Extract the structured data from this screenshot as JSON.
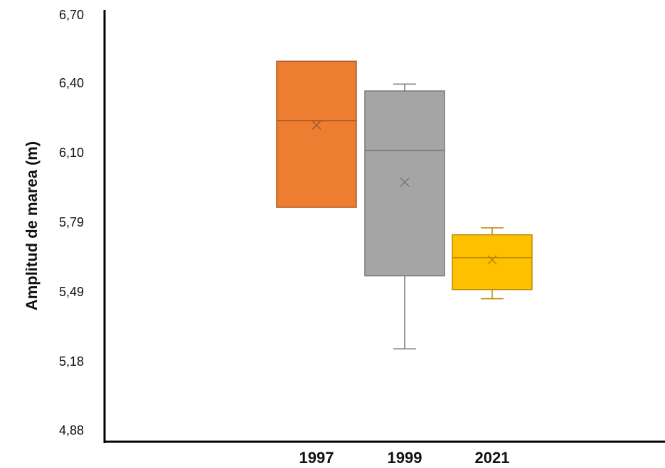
{
  "chart_data": {
    "type": "box",
    "title": "",
    "xlabel": "",
    "ylabel": "Amplitud de marea (m)",
    "ylim": [
      4.88,
      6.7
    ],
    "yticks": [
      "6,70",
      "6,40",
      "6,10",
      "5,79",
      "5,49",
      "5,18",
      "4,88"
    ],
    "yticks_values": [
      6.7,
      6.4,
      6.1,
      5.79,
      5.49,
      5.18,
      4.88
    ],
    "grid": false,
    "legend": "none",
    "categories": [
      "1997",
      "1999",
      "2021"
    ],
    "series": [
      {
        "category": "1997",
        "color": "#ED7D31",
        "whisker_low": 5.86,
        "q1": 5.86,
        "median": 6.24,
        "q3": 6.5,
        "whisker_high": 6.5,
        "mean": 6.22
      },
      {
        "category": "1999",
        "color": "#A5A5A5",
        "whisker_low": 5.24,
        "q1": 5.56,
        "median": 6.11,
        "q3": 6.37,
        "whisker_high": 6.4,
        "mean": 5.97
      },
      {
        "category": "2021",
        "color": "#FFC000",
        "whisker_low": 5.46,
        "q1": 5.5,
        "median": 5.64,
        "q3": 5.74,
        "whisker_high": 5.77,
        "mean": 5.63
      }
    ]
  }
}
